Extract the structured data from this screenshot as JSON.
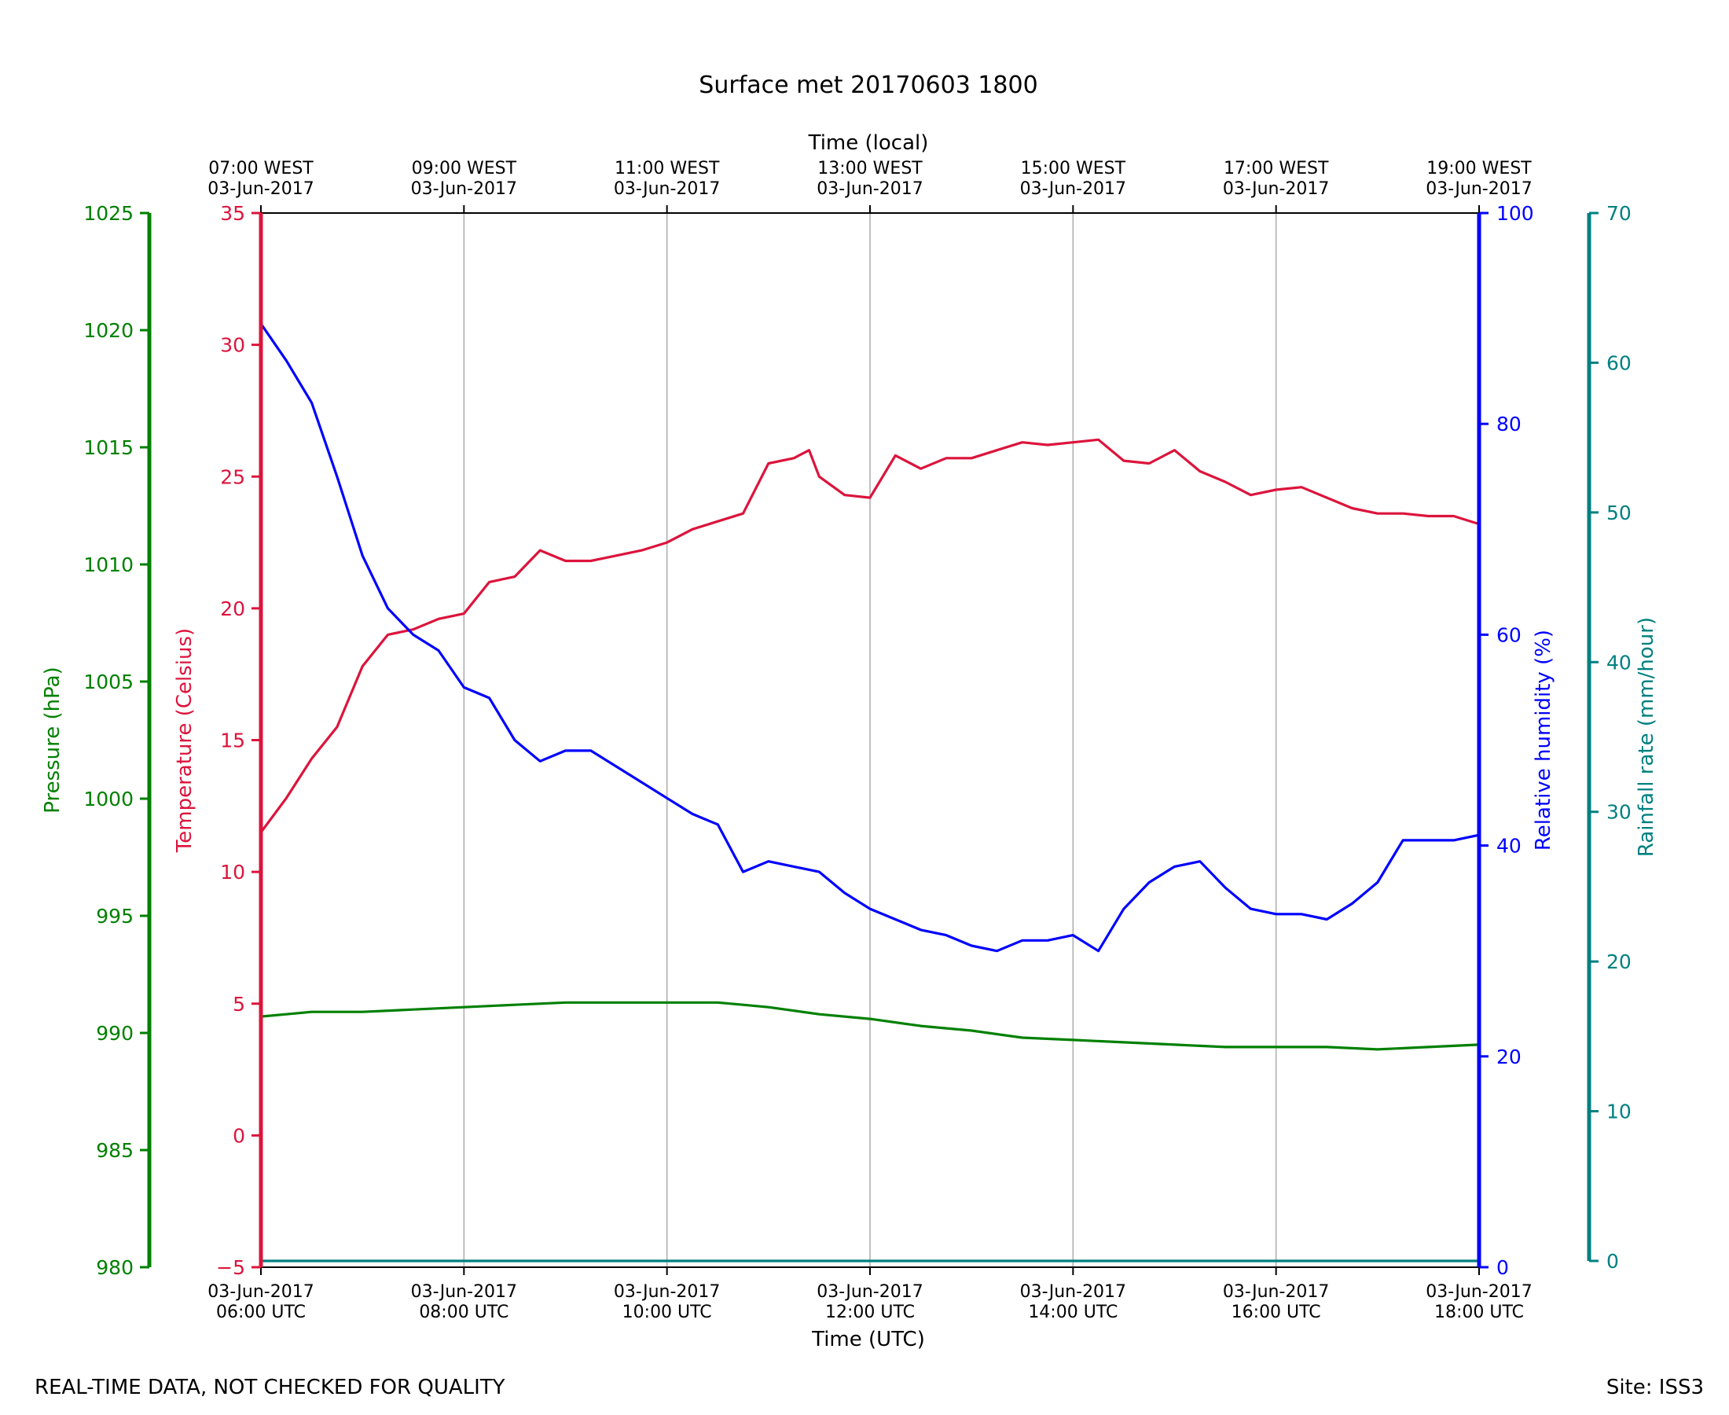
{
  "chart_data": {
    "type": "line",
    "title": "Surface met 20170603 1800",
    "top_axis_label": "Time (local)",
    "xlabel": "Time (UTC)",
    "x_hours_utc_range": [
      6,
      18
    ],
    "x_ticks_utc": [
      {
        "hour": 6,
        "date": "03-Jun-2017",
        "time": "06:00 UTC"
      },
      {
        "hour": 8,
        "date": "03-Jun-2017",
        "time": "08:00 UTC"
      },
      {
        "hour": 10,
        "date": "03-Jun-2017",
        "time": "10:00 UTC"
      },
      {
        "hour": 12,
        "date": "03-Jun-2017",
        "time": "12:00 UTC"
      },
      {
        "hour": 14,
        "date": "03-Jun-2017",
        "time": "14:00 UTC"
      },
      {
        "hour": 16,
        "date": "03-Jun-2017",
        "time": "16:00 UTC"
      },
      {
        "hour": 18,
        "date": "03-Jun-2017",
        "time": "18:00 UTC"
      }
    ],
    "x_ticks_local": [
      {
        "hour": 6,
        "time": "07:00 WEST",
        "date": "03-Jun-2017"
      },
      {
        "hour": 8,
        "time": "09:00 WEST",
        "date": "03-Jun-2017"
      },
      {
        "hour": 10,
        "time": "11:00 WEST",
        "date": "03-Jun-2017"
      },
      {
        "hour": 12,
        "time": "13:00 WEST",
        "date": "03-Jun-2017"
      },
      {
        "hour": 14,
        "time": "15:00 WEST",
        "date": "03-Jun-2017"
      },
      {
        "hour": 16,
        "time": "17:00 WEST",
        "date": "03-Jun-2017"
      },
      {
        "hour": 18,
        "time": "19:00 WEST",
        "date": "03-Jun-2017"
      }
    ],
    "grid_vertical": true,
    "axes": {
      "pressure": {
        "label": "Pressure (hPa)",
        "ylim": [
          980,
          1025
        ],
        "ticks": [
          980,
          985,
          990,
          995,
          1000,
          1005,
          1010,
          1015,
          1020,
          1025
        ],
        "color": "#008000"
      },
      "temperature": {
        "label": "Temperature (Celsius)",
        "ylim": [
          -5,
          35
        ],
        "ticks": [
          -5,
          0,
          5,
          10,
          15,
          20,
          25,
          30,
          35
        ],
        "tick_labels": [
          "−5",
          "0",
          "5",
          "10",
          "15",
          "20",
          "25",
          "30",
          "35"
        ],
        "color": "#dc143c"
      },
      "humidity": {
        "label": "Relative humidity (%)",
        "ylim": [
          0,
          100
        ],
        "ticks": [
          0,
          20,
          40,
          60,
          80,
          100
        ],
        "color": "#0000ff"
      },
      "rainfall": {
        "label": "Rainfall rate (mm/hour)",
        "ylim": [
          0,
          70
        ],
        "ticks": [
          0,
          10,
          20,
          30,
          40,
          50,
          60,
          70
        ],
        "color": "#008080"
      }
    },
    "series": [
      {
        "name": "Temperature",
        "axis": "temperature",
        "color": "#dc143c",
        "x": [
          6.0,
          6.25,
          6.5,
          6.75,
          7.0,
          7.25,
          7.5,
          7.75,
          8.0,
          8.25,
          8.5,
          8.75,
          9.0,
          9.25,
          9.5,
          9.75,
          10.0,
          10.25,
          10.5,
          10.75,
          11.0,
          11.25,
          11.4,
          11.5,
          11.75,
          12.0,
          12.25,
          12.5,
          12.75,
          13.0,
          13.25,
          13.5,
          13.75,
          14.0,
          14.25,
          14.5,
          14.75,
          15.0,
          15.25,
          15.5,
          15.75,
          16.0,
          16.25,
          16.5,
          16.75,
          17.0,
          17.25,
          17.5,
          17.75,
          18.0
        ],
        "y": [
          11.5,
          12.8,
          14.3,
          15.5,
          17.8,
          19.0,
          19.2,
          19.6,
          19.8,
          21.0,
          21.2,
          22.2,
          21.8,
          21.8,
          22.0,
          22.2,
          22.5,
          23.0,
          23.3,
          23.6,
          25.5,
          25.7,
          26.0,
          25.0,
          24.3,
          24.2,
          25.8,
          25.3,
          25.7,
          25.7,
          26.0,
          26.3,
          26.2,
          26.3,
          26.4,
          25.6,
          25.5,
          26.0,
          25.2,
          24.8,
          24.3,
          24.5,
          24.6,
          24.2,
          23.8,
          23.6,
          23.6,
          23.5,
          23.5,
          23.2
        ]
      },
      {
        "name": "Relative humidity",
        "axis": "humidity",
        "color": "#0000ff",
        "x": [
          6.0,
          6.25,
          6.5,
          6.75,
          7.0,
          7.25,
          7.5,
          7.75,
          8.0,
          8.25,
          8.5,
          8.75,
          9.0,
          9.25,
          9.5,
          9.75,
          10.0,
          10.25,
          10.5,
          10.75,
          11.0,
          11.25,
          11.5,
          11.75,
          12.0,
          12.25,
          12.5,
          12.75,
          13.0,
          13.25,
          13.5,
          13.75,
          14.0,
          14.25,
          14.5,
          14.75,
          15.0,
          15.25,
          15.5,
          15.75,
          16.0,
          16.25,
          16.5,
          16.75,
          17.0,
          17.25,
          17.5,
          17.75,
          18.0
        ],
        "y": [
          89.5,
          86.0,
          82.0,
          75.0,
          67.5,
          62.5,
          60.0,
          58.5,
          55.0,
          54.0,
          50.0,
          48.0,
          49.0,
          49.0,
          47.5,
          46.0,
          44.5,
          43.0,
          42.0,
          37.5,
          38.5,
          38.0,
          37.5,
          35.5,
          34.0,
          33.0,
          32.0,
          31.5,
          30.5,
          30.0,
          31.0,
          31.0,
          31.5,
          30.0,
          34.0,
          36.5,
          38.0,
          38.5,
          36.0,
          34.0,
          33.5,
          33.5,
          33.0,
          34.5,
          36.5,
          40.5,
          40.5,
          40.5,
          41.0
        ]
      },
      {
        "name": "Pressure",
        "axis": "pressure",
        "color": "#008000",
        "x": [
          6.0,
          6.25,
          6.5,
          6.75,
          7.0,
          7.5,
          8.0,
          8.5,
          9.0,
          9.5,
          10.0,
          10.25,
          10.5,
          10.75,
          11.0,
          11.5,
          12.0,
          12.5,
          13.0,
          13.5,
          14.0,
          14.5,
          15.0,
          15.5,
          16.0,
          16.5,
          17.0,
          17.5,
          18.0
        ],
        "y": [
          990.7,
          990.8,
          990.9,
          990.9,
          990.9,
          991.0,
          991.1,
          991.2,
          991.3,
          991.3,
          991.3,
          991.3,
          991.3,
          991.2,
          991.1,
          990.8,
          990.6,
          990.3,
          990.1,
          989.8,
          989.7,
          989.6,
          989.5,
          989.4,
          989.4,
          989.4,
          989.3,
          989.4,
          989.5
        ]
      },
      {
        "name": "Rainfall rate",
        "axis": "rainfall",
        "color": "#008080",
        "x": [
          6.0,
          18.0
        ],
        "y": [
          0,
          0
        ]
      }
    ]
  },
  "footer": {
    "disclaimer": "REAL-TIME DATA, NOT CHECKED FOR QUALITY",
    "site": "Site: ISS3"
  }
}
